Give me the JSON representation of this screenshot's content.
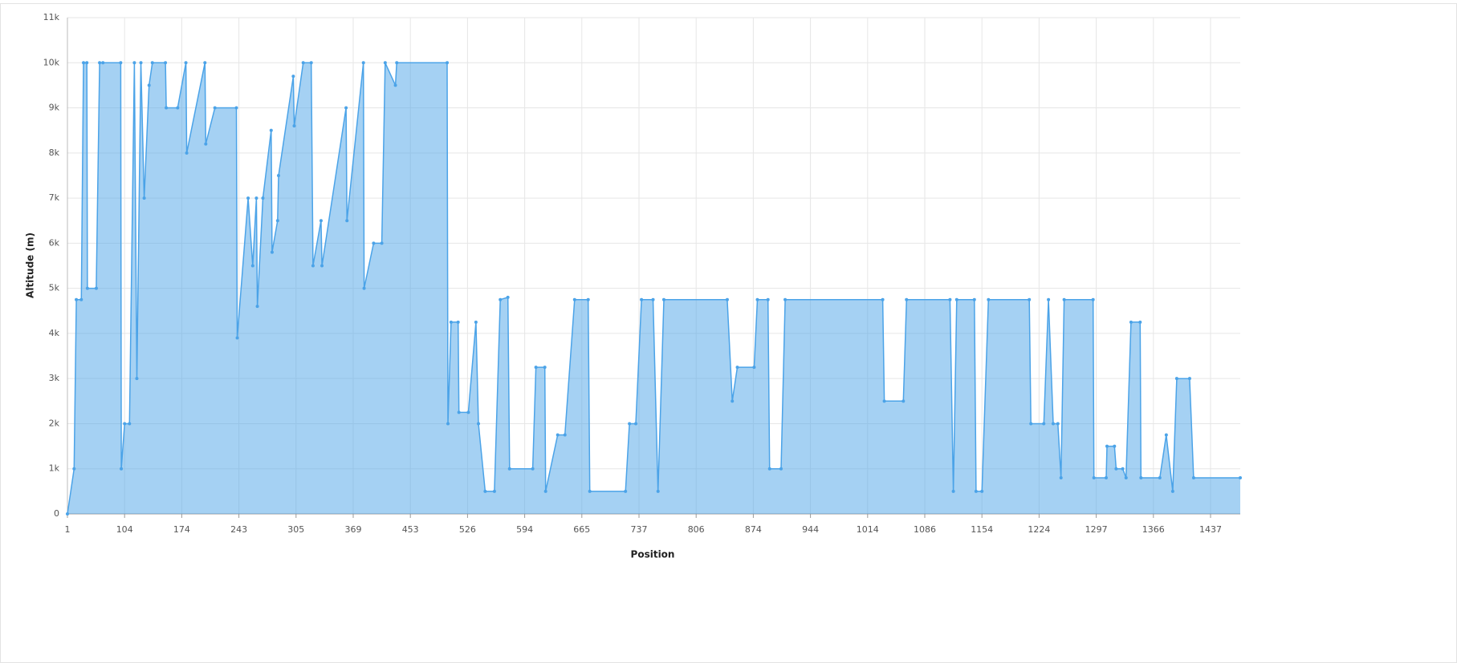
{
  "chart_data": {
    "type": "area",
    "x_label": "Position",
    "y_label": "Altitude (m)",
    "color": "#4ba3e8",
    "x": [
      1,
      13,
      17,
      26,
      30,
      36,
      37,
      53,
      59,
      65,
      97,
      98,
      104,
      110,
      116,
      119,
      124,
      128,
      134,
      138,
      154,
      155,
      169,
      179,
      180,
      202,
      203,
      214,
      240,
      241,
      253,
      258,
      262,
      263,
      269,
      278,
      279,
      285,
      286,
      302,
      303,
      313,
      322,
      324,
      333,
      334,
      361,
      362,
      384,
      385,
      399,
      411,
      416,
      431,
      433,
      500,
      501,
      505,
      514,
      515,
      527,
      536,
      539,
      547,
      558,
      565,
      574,
      576,
      604,
      608,
      619,
      620,
      635,
      644,
      656,
      673,
      675,
      720,
      725,
      733,
      740,
      754,
      760,
      767,
      843,
      849,
      855,
      875,
      879,
      892,
      894,
      908,
      913,
      1033,
      1035,
      1059,
      1063,
      1116,
      1120,
      1124,
      1145,
      1147,
      1154,
      1162,
      1212,
      1214,
      1230,
      1236,
      1242,
      1248,
      1252,
      1256,
      1293,
      1294,
      1309,
      1310,
      1319,
      1321,
      1329,
      1333,
      1339,
      1350,
      1351,
      1374,
      1382,
      1390,
      1395,
      1411,
      1416,
      1474
    ],
    "values": [
      0,
      1000,
      4750,
      4750,
      10000,
      10000,
      5000,
      5000,
      10000,
      10000,
      10000,
      1000,
      2000,
      2000,
      10000,
      3000,
      10000,
      7000,
      9500,
      10000,
      10000,
      9000,
      9000,
      10000,
      8000,
      10000,
      8200,
      9000,
      9000,
      3900,
      7000,
      5500,
      7000,
      4600,
      7000,
      8500,
      5800,
      6500,
      7500,
      9700,
      8600,
      10000,
      10000,
      5500,
      6500,
      5500,
      9000,
      6500,
      10000,
      5000,
      6000,
      6000,
      10000,
      9500,
      10000,
      10000,
      2000,
      4250,
      4250,
      2250,
      2250,
      4250,
      2000,
      500,
      500,
      4750,
      4800,
      1000,
      1000,
      3250,
      3250,
      500,
      1750,
      1750,
      4750,
      4750,
      500,
      500,
      2000,
      2000,
      4750,
      4750,
      500,
      4750,
      4750,
      2500,
      3250,
      3250,
      4750,
      4750,
      1000,
      1000,
      4750,
      4750,
      2500,
      2500,
      4750,
      4750,
      500,
      4750,
      4750,
      500,
      500,
      4750,
      4750,
      2000,
      2000,
      4750,
      2000,
      2000,
      800,
      4750,
      4750,
      800,
      800,
      1500,
      1500,
      1000,
      1000,
      800,
      4250,
      4250,
      800,
      800,
      1750,
      500,
      3000,
      3000,
      800,
      800
    ],
    "xlim": [
      1,
      1474
    ],
    "xticks": [
      1,
      104,
      174,
      243,
      305,
      369,
      453,
      526,
      594,
      665,
      737,
      806,
      874,
      944,
      1014,
      1086,
      1154,
      1224,
      1297,
      1366,
      1437
    ],
    "ylim": [
      0,
      11000
    ],
    "yticks": [
      0,
      {
        "value": 1000,
        "label": "1k"
      },
      {
        "value": 2000,
        "label": "2k"
      },
      {
        "value": 3000,
        "label": "3k"
      },
      {
        "value": 4000,
        "label": "4k"
      },
      {
        "value": 5000,
        "label": "5k"
      },
      {
        "value": 6000,
        "label": "6k"
      },
      {
        "value": 7000,
        "label": "7k"
      },
      {
        "value": 8000,
        "label": "8k"
      },
      {
        "value": 9000,
        "label": "9k"
      },
      {
        "value": 10000,
        "label": "10k"
      },
      {
        "value": 11000,
        "label": "11k"
      }
    ],
    "grid": true
  }
}
